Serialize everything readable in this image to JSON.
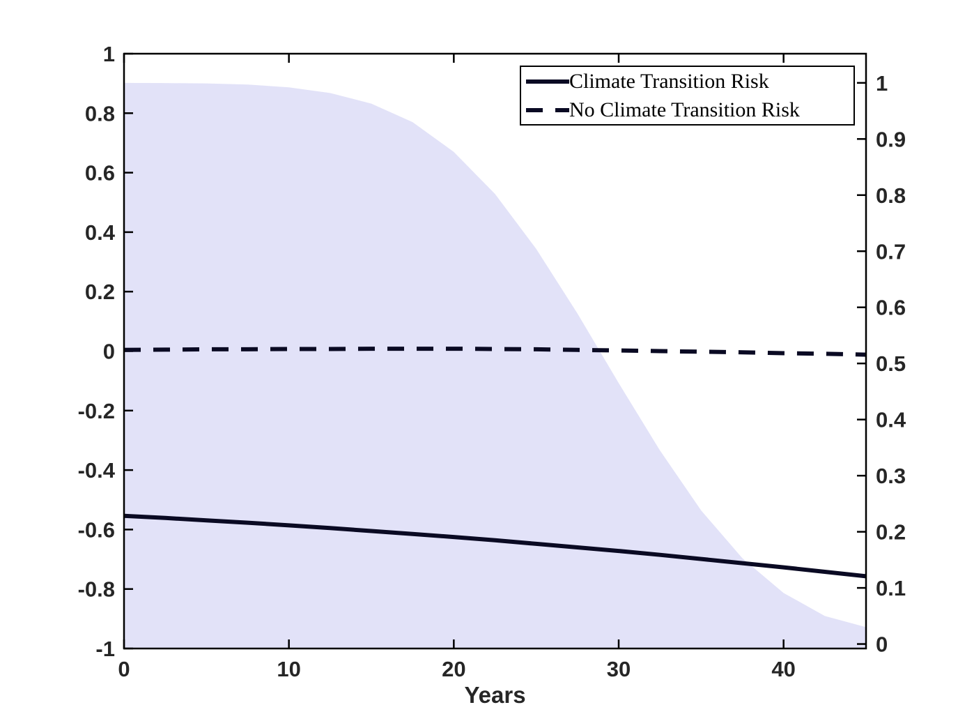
{
  "figure": {
    "xlabel": "Years",
    "background_color": "#ffffff",
    "axis_color": "#000000",
    "tick_label_color": "#262626",
    "line_color": "#0a0a23",
    "fill_color": "#e2e2f8",
    "legend": {
      "position": "top-right",
      "items": [
        {
          "label": "Climate Transition Risk",
          "style": "solid"
        },
        {
          "label": "No Climate Transition Risk",
          "style": "dashed"
        }
      ]
    }
  },
  "chart_data": {
    "type": "line",
    "title": "",
    "xlabel": "Years",
    "grid": false,
    "xlim": [
      0,
      45
    ],
    "x_ticks": [
      0,
      10,
      20,
      30,
      40
    ],
    "left_axis": {
      "ylim": [
        -1,
        1
      ],
      "ticks": [
        -1,
        -0.8,
        -0.6,
        -0.4,
        -0.2,
        0,
        0.2,
        0.4,
        0.6,
        0.8,
        1
      ]
    },
    "right_axis": {
      "ylim": [
        -0.008,
        1.052
      ],
      "ticks": [
        0,
        0.1,
        0.2,
        0.3,
        0.4,
        0.5,
        0.6,
        0.7,
        0.8,
        0.9,
        1
      ]
    },
    "x": [
      0,
      2.5,
      5,
      7.5,
      10,
      12.5,
      15,
      17.5,
      20,
      22.5,
      25,
      27.5,
      30,
      32.5,
      35,
      37.5,
      40,
      42.5,
      45
    ],
    "series": [
      {
        "name": "Climate Transition Risk",
        "axis": "left",
        "style": "solid",
        "values": [
          -0.554,
          -0.561,
          -0.569,
          -0.577,
          -0.586,
          -0.595,
          -0.605,
          -0.615,
          -0.625,
          -0.636,
          -0.648,
          -0.66,
          -0.672,
          -0.685,
          -0.699,
          -0.713,
          -0.727,
          -0.742,
          -0.757
        ]
      },
      {
        "name": "No Climate Transition Risk",
        "axis": "left",
        "style": "dashed",
        "values": [
          0.004,
          0.005,
          0.006,
          0.006,
          0.007,
          0.007,
          0.008,
          0.008,
          0.008,
          0.007,
          0.006,
          0.004,
          0.002,
          0.0,
          -0.002,
          -0.004,
          -0.007,
          -0.009,
          -0.012
        ]
      },
      {
        "name": "Shaded probability region",
        "axis": "right",
        "style": "area",
        "values": [
          1.0,
          0.9996,
          0.999,
          0.997,
          0.992,
          0.982,
          0.963,
          0.93,
          0.877,
          0.802,
          0.704,
          0.589,
          0.465,
          0.345,
          0.238,
          0.153,
          0.091,
          0.05,
          0.03
        ]
      }
    ]
  }
}
